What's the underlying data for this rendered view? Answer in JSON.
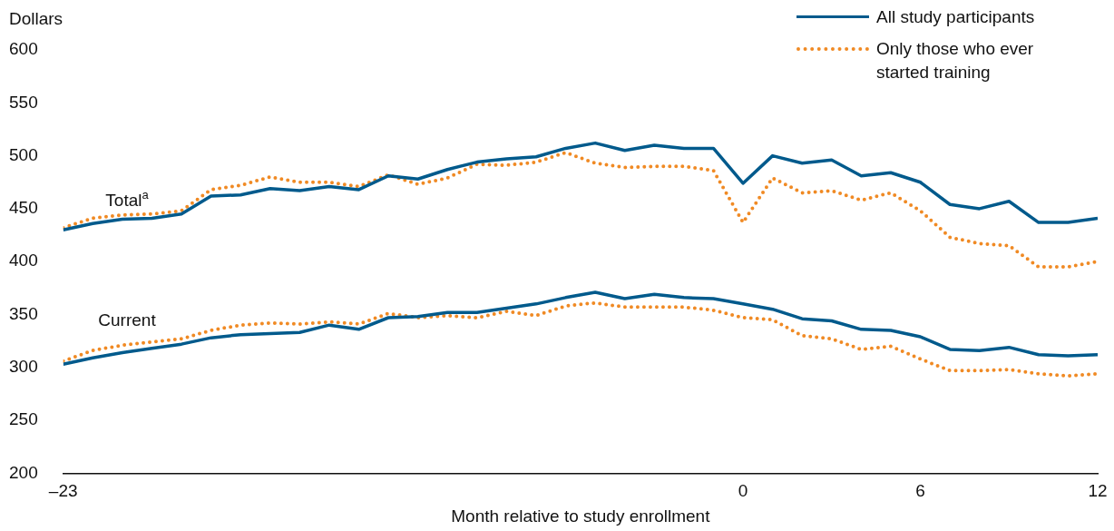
{
  "chart_data": {
    "type": "line",
    "ylabel": "Dollars",
    "xlabel": "Month relative to study enrollment",
    "x": [
      -23,
      -22,
      -21,
      -20,
      -19,
      -18,
      -17,
      -16,
      -15,
      -14,
      -13,
      -12,
      -11,
      -10,
      -9,
      -8,
      -7,
      -6,
      -5,
      -4,
      -3,
      -2,
      -1,
      0,
      1,
      2,
      3,
      4,
      5,
      6,
      7,
      8,
      9,
      10,
      11,
      12
    ],
    "xlim": [
      -23,
      12
    ],
    "xticks": [
      {
        "value": -23,
        "label": "–23"
      },
      0,
      6,
      12
    ],
    "ylim": [
      200,
      600
    ],
    "yticks": [
      200,
      250,
      300,
      350,
      400,
      450,
      500,
      550,
      600
    ],
    "grid": false,
    "legend": "top right",
    "marker": "none",
    "series": [
      {
        "name": "All study participants",
        "color": "#005a8c",
        "line_style": "solid",
        "values": [
          430,
          436,
          440,
          441,
          445,
          462,
          463,
          469,
          467,
          471,
          468,
          481,
          478,
          487,
          494,
          497,
          499,
          507,
          512,
          505,
          510,
          507,
          507,
          474,
          500,
          493,
          496,
          481,
          484,
          475,
          454,
          450,
          457,
          437,
          437,
          441
        ]
      },
      {
        "name": "Only those who ever started training",
        "color": "#f08a24",
        "line_style": "dotted",
        "values": [
          432,
          441,
          444,
          445,
          448,
          468,
          472,
          480,
          475,
          475,
          471,
          482,
          473,
          479,
          492,
          491,
          494,
          503,
          493,
          489,
          490,
          490,
          486,
          437,
          479,
          465,
          467,
          458,
          465,
          448,
          423,
          417,
          415,
          395,
          395,
          400
        ]
      },
      {
        "color": "#005a8c",
        "line_style": "solid",
        "values": [
          303,
          309,
          314,
          318,
          322,
          328,
          331,
          332,
          333,
          340,
          336,
          347,
          348,
          352,
          352,
          356,
          360,
          366,
          371,
          365,
          369,
          366,
          365,
          360,
          355,
          346,
          344,
          336,
          335,
          329,
          317,
          316,
          319,
          312,
          311,
          312
        ]
      },
      {
        "color": "#f08a24",
        "line_style": "dotted",
        "values": [
          306,
          316,
          321,
          324,
          327,
          335,
          340,
          342,
          341,
          343,
          341,
          351,
          347,
          349,
          347,
          353,
          349,
          358,
          361,
          357,
          357,
          357,
          354,
          347,
          345,
          330,
          327,
          317,
          320,
          308,
          297,
          297,
          298,
          294,
          292,
          294
        ]
      }
    ],
    "annotations": [
      "Total$^{a}$",
      "Current"
    ]
  }
}
